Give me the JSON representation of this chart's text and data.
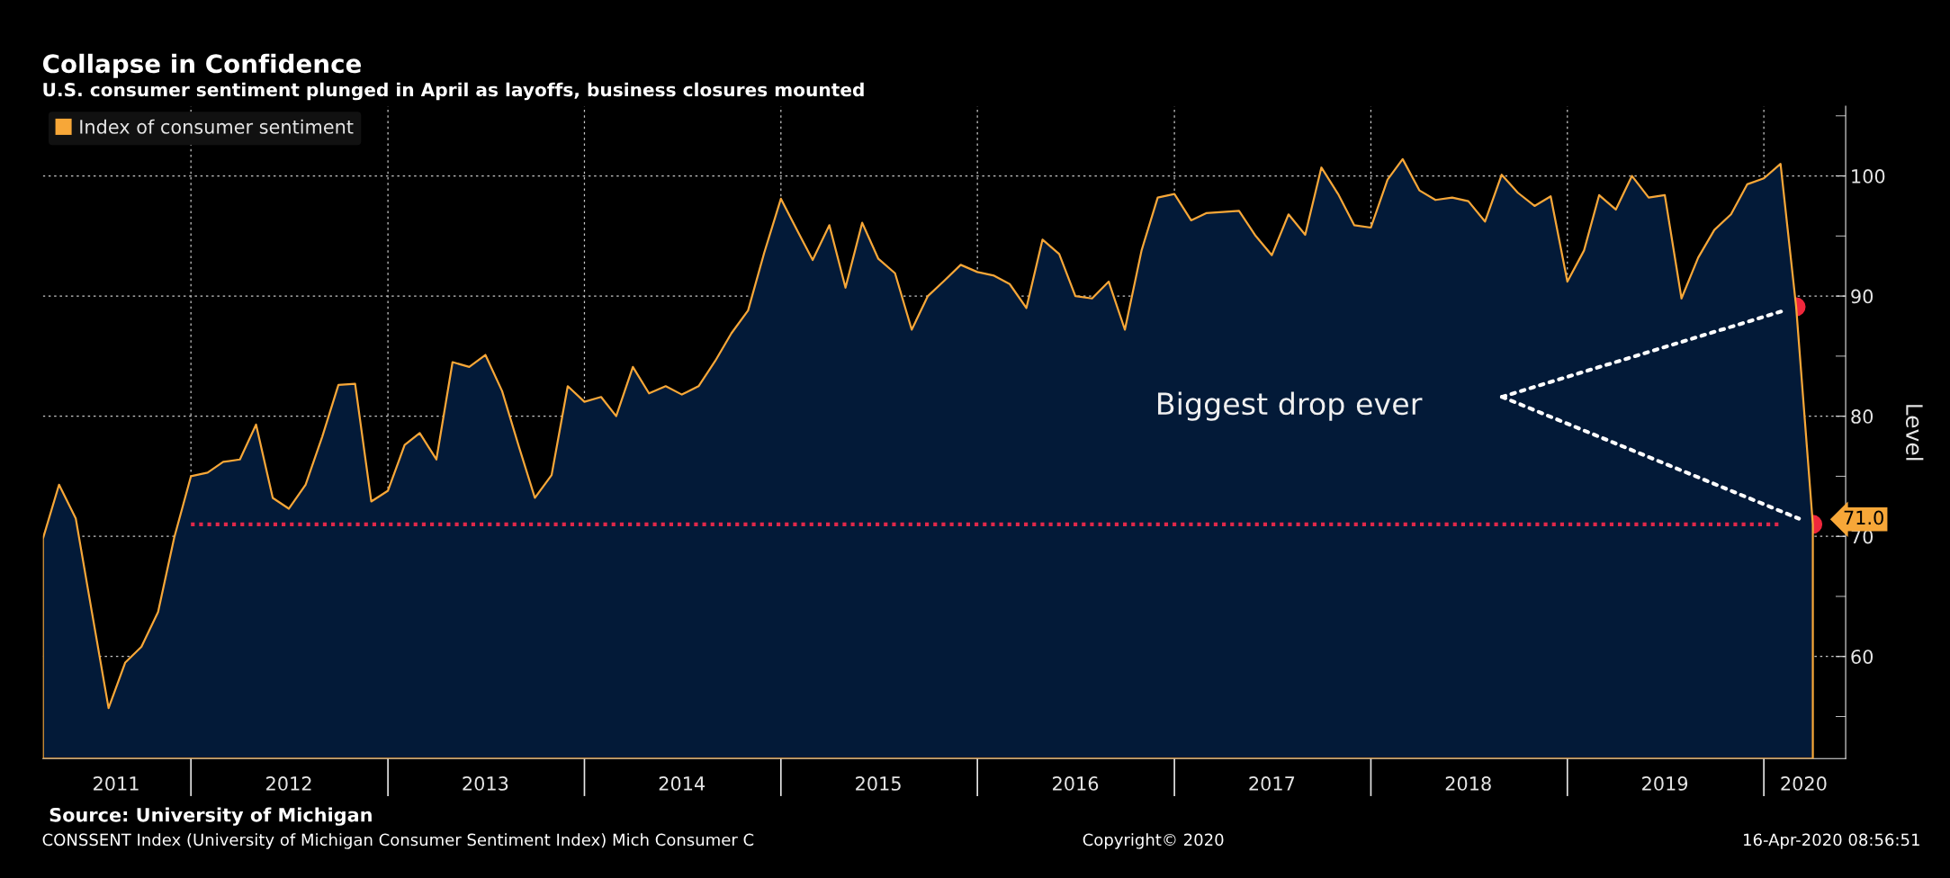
{
  "chart_data": {
    "type": "area",
    "title": "Collapse in Confidence",
    "subtitle": "U.S. consumer sentiment plunged in April as layoffs, business closures mounted",
    "ylabel": "Level",
    "xlim": [
      "2011-04",
      "2020-06"
    ],
    "xticks": [
      {
        "value": "2011-08-15",
        "label": "2011"
      },
      {
        "value": "2012-07-01",
        "label": "2012"
      },
      {
        "value": "2013-07-01",
        "label": "2013"
      },
      {
        "value": "2014-07-01",
        "label": "2014"
      },
      {
        "value": "2015-07-01",
        "label": "2015"
      },
      {
        "value": "2016-07-01",
        "label": "2016"
      },
      {
        "value": "2017-07-01",
        "label": "2017"
      },
      {
        "value": "2018-07-01",
        "label": "2018"
      },
      {
        "value": "2019-07-01",
        "label": "2019"
      },
      {
        "value": "2020-03-15",
        "label": "2020"
      },
      {
        "value": "2012",
        "label": null
      },
      {
        "value": "2013",
        "label": null
      },
      {
        "value": "2014",
        "label": null
      },
      {
        "value": "2015",
        "label": null
      },
      {
        "value": "2016",
        "label": null
      },
      {
        "value": "2017",
        "label": null
      },
      {
        "value": "2018",
        "label": null
      },
      {
        "value": "2019",
        "label": null
      },
      {
        "value": "2020",
        "label": null
      }
    ],
    "ylim": [
      51.5,
      105.8
    ],
    "yticks": [
      {
        "value": 55,
        "label": null
      },
      60,
      {
        "value": 65,
        "label": null
      },
      70,
      {
        "value": 75,
        "label": null
      },
      80,
      {
        "value": 85,
        "label": null
      },
      90,
      {
        "value": 95,
        "label": null
      },
      100,
      {
        "value": 105,
        "label": null
      }
    ],
    "grid": true,
    "legend": "top left",
    "series": [
      {
        "name": "Index of consumer sentiment",
        "color": "#f7a738",
        "x": [
          "2011-04",
          "2011-05",
          "2011-06",
          "2011-07",
          "2011-08",
          "2011-09",
          "2011-10",
          "2011-11",
          "2011-12",
          "2012-01",
          "2012-02",
          "2012-03",
          "2012-04",
          "2012-05",
          "2012-06",
          "2012-07",
          "2012-08",
          "2012-09",
          "2012-10",
          "2012-11",
          "2012-12",
          "2013-01",
          "2013-02",
          "2013-03",
          "2013-04",
          "2013-05",
          "2013-06",
          "2013-07",
          "2013-08",
          "2013-09",
          "2013-10",
          "2013-11",
          "2013-12",
          "2014-01",
          "2014-02",
          "2014-03",
          "2014-04",
          "2014-05",
          "2014-06",
          "2014-07",
          "2014-08",
          "2014-09",
          "2014-10",
          "2014-11",
          "2014-12",
          "2015-01",
          "2015-02",
          "2015-03",
          "2015-04",
          "2015-05",
          "2015-06",
          "2015-07",
          "2015-08",
          "2015-09",
          "2015-10",
          "2015-11",
          "2015-12",
          "2016-01",
          "2016-02",
          "2016-03",
          "2016-04",
          "2016-05",
          "2016-06",
          "2016-07",
          "2016-08",
          "2016-09",
          "2016-10",
          "2016-11",
          "2016-12",
          "2017-01",
          "2017-02",
          "2017-03",
          "2017-04",
          "2017-05",
          "2017-06",
          "2017-07",
          "2017-08",
          "2017-09",
          "2017-10",
          "2017-11",
          "2017-12",
          "2018-01",
          "2018-02",
          "2018-03",
          "2018-04",
          "2018-05",
          "2018-06",
          "2018-07",
          "2018-08",
          "2018-09",
          "2018-10",
          "2018-11",
          "2018-12",
          "2019-01",
          "2019-02",
          "2019-03",
          "2019-04",
          "2019-05",
          "2019-06",
          "2019-07",
          "2019-08",
          "2019-09",
          "2019-10",
          "2019-11",
          "2019-12",
          "2020-01",
          "2020-02",
          "2020-03",
          "2020-04"
        ],
        "values": [
          69.8,
          74.3,
          71.5,
          63.7,
          55.7,
          59.5,
          60.8,
          63.7,
          69.9,
          75.0,
          75.3,
          76.2,
          76.4,
          79.3,
          73.2,
          72.3,
          74.3,
          78.3,
          82.6,
          82.7,
          72.9,
          73.8,
          77.6,
          78.6,
          76.4,
          84.5,
          84.1,
          85.1,
          82.1,
          77.5,
          73.2,
          75.1,
          82.5,
          81.2,
          81.6,
          80.0,
          84.1,
          81.9,
          82.5,
          81.8,
          82.5,
          84.6,
          86.9,
          88.8,
          93.6,
          98.1,
          95.4,
          93.0,
          95.9,
          90.7,
          96.1,
          93.1,
          91.9,
          87.2,
          90.0,
          91.3,
          92.6,
          92.0,
          91.7,
          91.0,
          89.0,
          94.7,
          93.5,
          90.0,
          89.8,
          91.2,
          87.2,
          93.8,
          98.2,
          98.5,
          96.3,
          96.9,
          97.0,
          97.1,
          95.0,
          93.4,
          96.8,
          95.1,
          100.7,
          98.5,
          95.9,
          95.7,
          99.7,
          101.4,
          98.8,
          98.0,
          98.2,
          97.9,
          96.2,
          100.1,
          98.6,
          97.5,
          98.3,
          91.2,
          93.8,
          98.4,
          97.2,
          100.0,
          98.2,
          98.4,
          89.8,
          93.2,
          95.5,
          96.8,
          99.3,
          99.8,
          101.0,
          89.1,
          71.0
        ],
        "value_labels": [
          null,
          null,
          null,
          null,
          null,
          null,
          null,
          null,
          null,
          null,
          null,
          null,
          null,
          null,
          null,
          null,
          null,
          null,
          null,
          null,
          null,
          null,
          null,
          null,
          null,
          null,
          null,
          null,
          null,
          null,
          null,
          null,
          null,
          null,
          null,
          null,
          null,
          null,
          null,
          null,
          null,
          null,
          null,
          null,
          null,
          null,
          null,
          null,
          null,
          null,
          null,
          null,
          null,
          null,
          null,
          null,
          null,
          null,
          null,
          null,
          null,
          null,
          null,
          null,
          null,
          null,
          null,
          null,
          null,
          null,
          null,
          null,
          null,
          null,
          null,
          null,
          null,
          null,
          null,
          null,
          null,
          null,
          null,
          null,
          null,
          null,
          null,
          null,
          null,
          null,
          null,
          null,
          null,
          null,
          null,
          null,
          null,
          null,
          null,
          null,
          null,
          null,
          null,
          null,
          null,
          null,
          null,
          null,
          "71.0"
        ]
      },
      {
        "type": "line",
        "color": "#e0284a",
        "line_style": "dotted",
        "marker": "none",
        "x": [
          "2012-01",
          "2020-02"
        ],
        "values": [
          71.0,
          71.0
        ]
      },
      {
        "type": "scatter",
        "color": "#f0283c",
        "marker": "circle",
        "x": [
          "2020-03",
          "2020-04"
        ],
        "values": [
          89.1,
          71.0
        ]
      }
    ],
    "annotations": [
      "Biggest drop ever",
      "Source: University of Michigan",
      "CONSSENT Index (University of Michigan Consumer Sentiment Index) Mich Consumer C",
      "Copyright© 2020",
      "16-Apr-2020 08:56:51"
    ]
  }
}
